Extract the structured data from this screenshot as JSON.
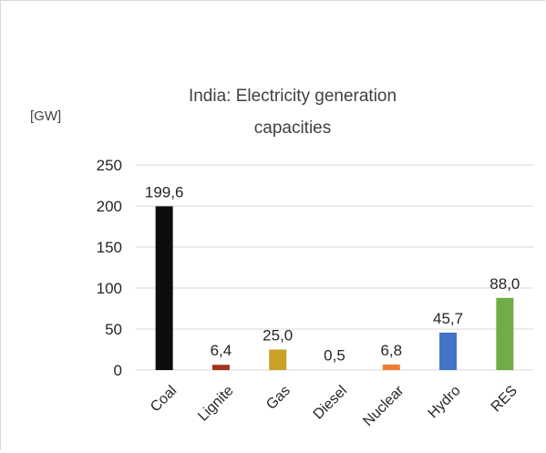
{
  "chart_data": {
    "type": "bar",
    "title": "India: Electricity generation capacities",
    "title_lines": [
      "India: Electricity generation",
      "capacities"
    ],
    "ylabel": "[GW]",
    "xlabel": "",
    "ylim": [
      0,
      250
    ],
    "yticks": [
      0,
      50,
      100,
      150,
      200,
      250
    ],
    "grid": true,
    "legend": "none",
    "categories": [
      "Coal",
      "Lignite",
      "Gas",
      "Diesel",
      "Nuclear",
      "Hydro",
      "RES"
    ],
    "values": [
      199.6,
      6.4,
      25.0,
      0.5,
      6.8,
      45.7,
      88.0
    ],
    "value_labels": [
      "199,6",
      "6,4",
      "25,0",
      "0,5",
      "6,8",
      "45,7",
      "88,0"
    ],
    "colors": [
      "#0d0d0d",
      "#a0361c",
      "#c9a227",
      "#e0e0e0",
      "#ed7d31",
      "#4472c4",
      "#70ad47"
    ]
  }
}
